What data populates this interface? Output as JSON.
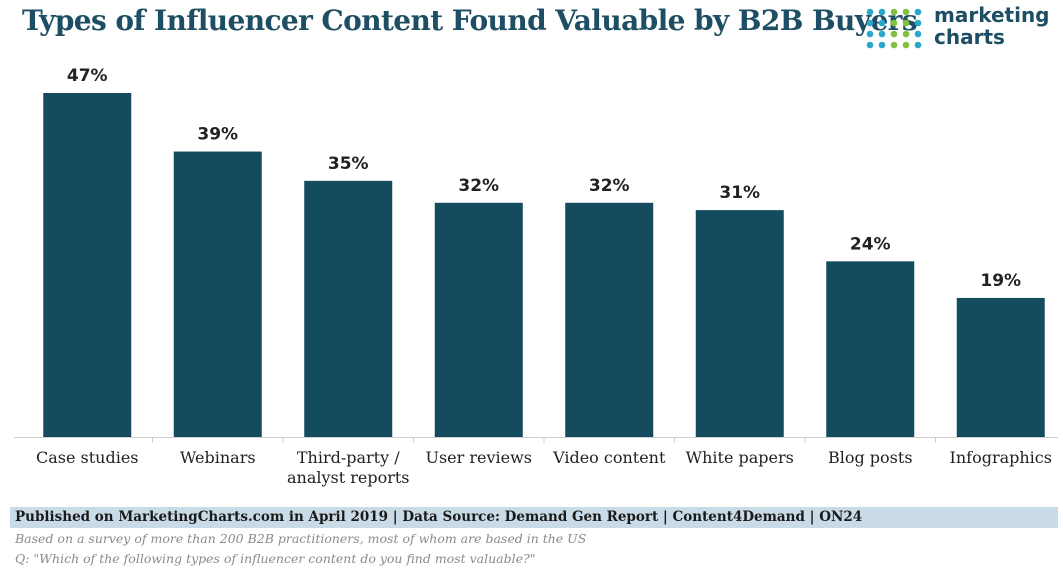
{
  "header": {
    "title": "Types of Influencer Content Found Valuable by B2B Buyers",
    "logo_line1": "marketing",
    "logo_line2": "charts",
    "logo_dot_colors": [
      "#2aa7c9",
      "#7fc241",
      "#1d4e63"
    ]
  },
  "chart_data": {
    "type": "bar",
    "title": "Types of Influencer Content Found Valuable by B2B Buyers",
    "xlabel": "",
    "ylabel": "",
    "categories": [
      "Case studies",
      "Webinars",
      "Third-party / analyst reports",
      "User reviews",
      "Video content",
      "White papers",
      "Blog posts",
      "Infographics"
    ],
    "category_lines": [
      [
        "Case studies"
      ],
      [
        "Webinars"
      ],
      [
        "Third-party /",
        "analyst reports"
      ],
      [
        "User reviews"
      ],
      [
        "Video content"
      ],
      [
        "White papers"
      ],
      [
        "Blog posts"
      ],
      [
        "Infographics"
      ]
    ],
    "values": [
      47,
      39,
      35,
      32,
      32,
      31,
      24,
      19
    ],
    "value_labels": [
      "47%",
      "39%",
      "35%",
      "32%",
      "32%",
      "31%",
      "24%",
      "19%"
    ],
    "unit": "%",
    "ylim": [
      0,
      47
    ],
    "grid": false,
    "bar_color": "#154b5e"
  },
  "footer": {
    "source": "Published on MarketingCharts.com in April 2019 | Data Source: Demand Gen Report | Content4Demand | ON24",
    "note1": "Based on a survey of more than 200 B2B practitioners, most of whom are based in the US",
    "note2": "Q: \"Which of the following types of influencer content do you find most valuable?\""
  }
}
